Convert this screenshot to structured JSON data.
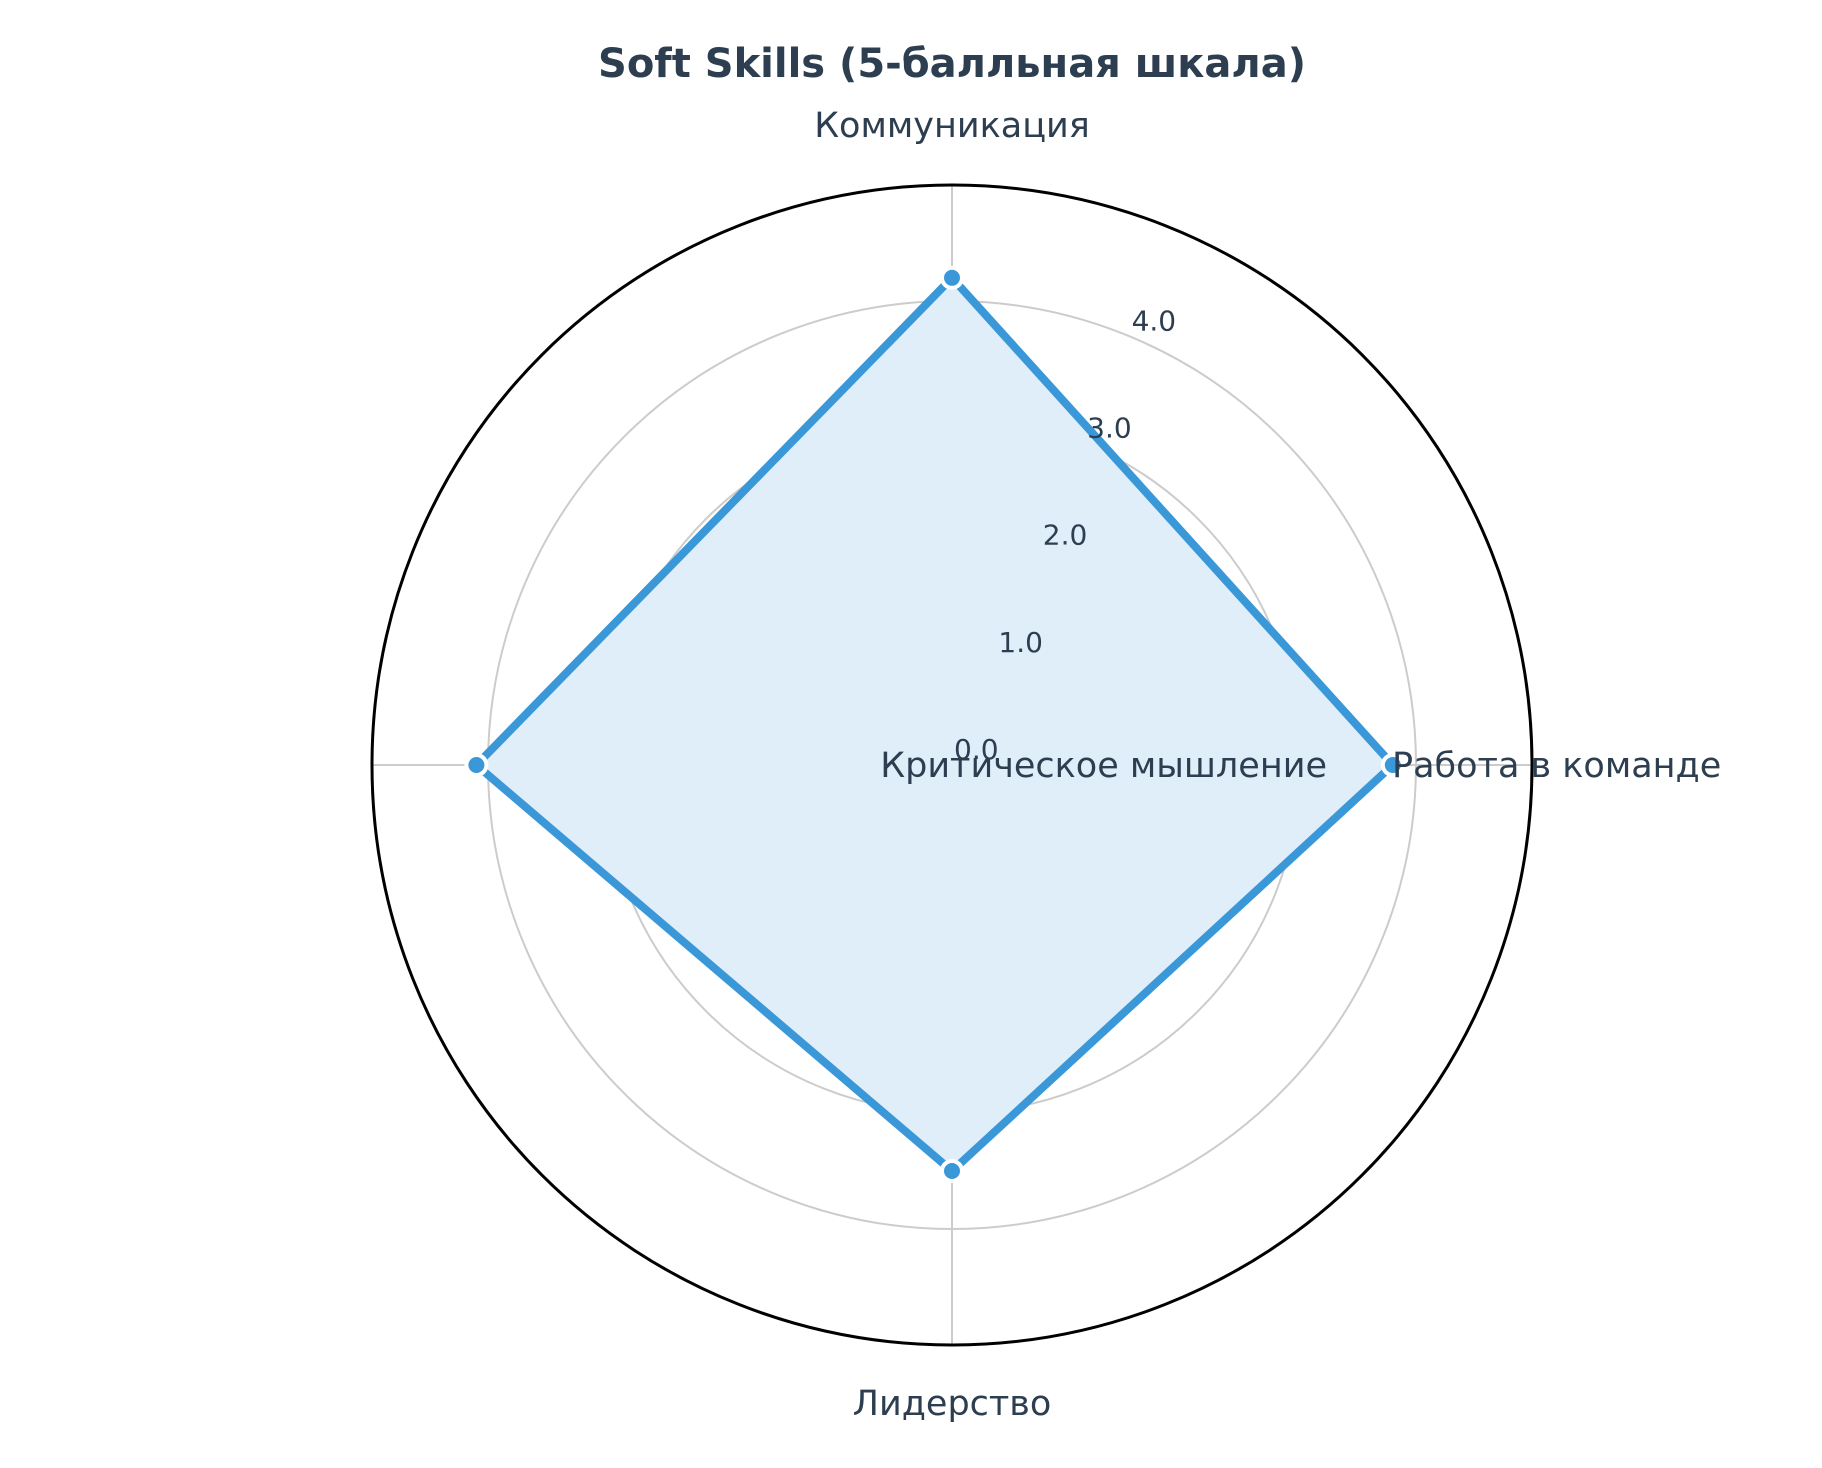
{
  "chart_data": {
    "type": "radar",
    "title": "Soft Skills (5-балльная шкала)",
    "axes": [
      "Коммуникация",
      "Работа в команде",
      "Лидерство",
      "Критическое мышление"
    ],
    "series": [
      {
        "values": [
          4.2,
          3.8,
          3.5,
          4.1
        ]
      }
    ],
    "rlim": [
      0,
      5
    ],
    "r_ticks": [
      0,
      1,
      2,
      3,
      4
    ],
    "r_tick_labels": [
      "0.0",
      "1.0",
      "2.0",
      "3.0",
      "4.0"
    ],
    "grid": true,
    "colors": {
      "line": "#3a98d8",
      "fill": "#e0eef9",
      "grid": "#cccccc",
      "outer": "#000000",
      "text": "#2c3e50"
    }
  }
}
